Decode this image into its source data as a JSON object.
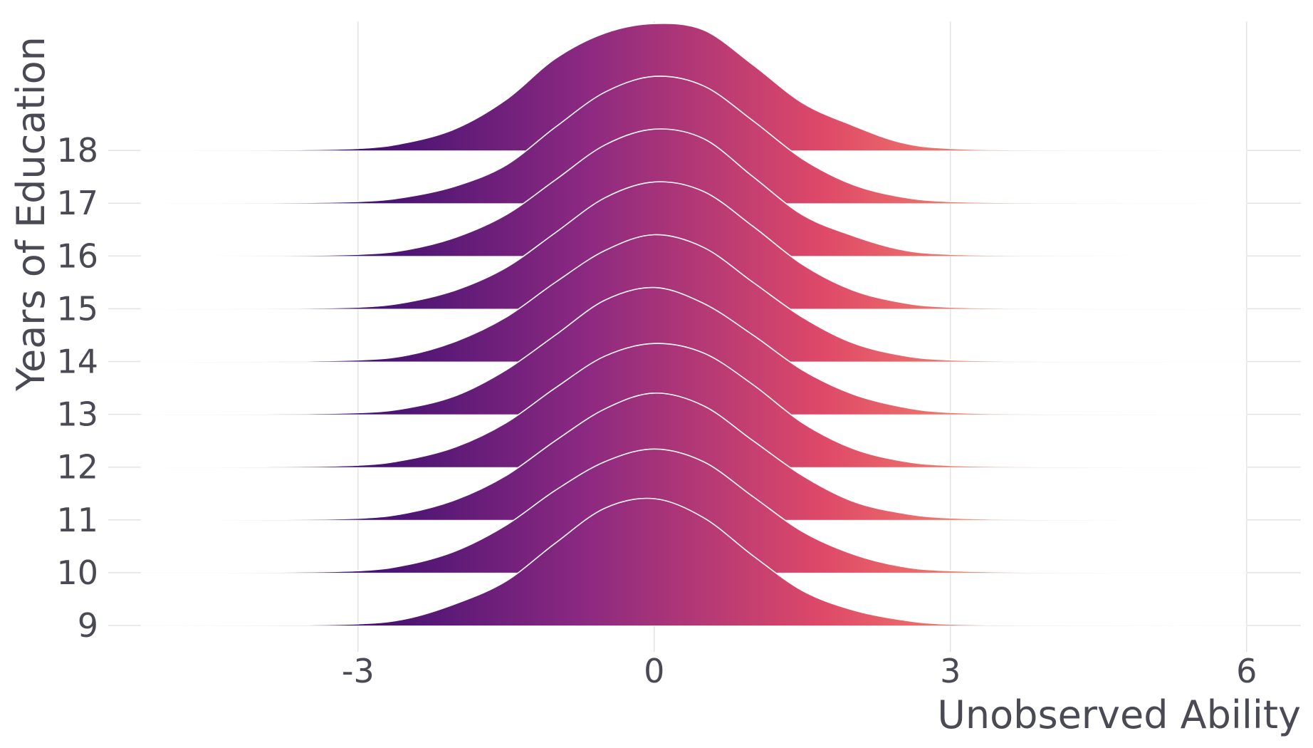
{
  "chart_data": {
    "type": "ridgeline",
    "x_label": "Unobserved Ability",
    "y_label": "Years of Education",
    "xlim": [
      -5.53,
      6.55
    ],
    "xticks": [
      -3,
      0,
      3,
      6
    ],
    "x": [
      -5.2,
      -4,
      -3,
      -2.5,
      -2,
      -1.5,
      -1,
      -0.5,
      0,
      0.5,
      1,
      1.5,
      2,
      2.5,
      3,
      4,
      6
    ],
    "categories": [
      "9",
      "10",
      "11",
      "12",
      "13",
      "14",
      "15",
      "16",
      "17",
      "18"
    ],
    "gradient": [
      "#000004",
      "#3b0f70",
      "#8c2981",
      "#de4968",
      "#fe9f6d",
      "#fcfdbf"
    ],
    "outline_color": "#ffffff",
    "grid": true,
    "series": [
      {
        "name": "9",
        "values": [
          0,
          0.001,
          0.005,
          0.022,
          0.07,
          0.14,
          0.26,
          0.37,
          0.4,
          0.34,
          0.22,
          0.11,
          0.05,
          0.018,
          0.004,
          0.001,
          0
        ]
      },
      {
        "name": "10",
        "values": [
          0,
          0.001,
          0.006,
          0.025,
          0.07,
          0.15,
          0.26,
          0.35,
          0.39,
          0.35,
          0.24,
          0.13,
          0.06,
          0.02,
          0.006,
          0.001,
          0
        ]
      },
      {
        "name": "11",
        "values": [
          0,
          0.001,
          0.005,
          0.022,
          0.065,
          0.14,
          0.25,
          0.35,
          0.4,
          0.36,
          0.25,
          0.14,
          0.06,
          0.022,
          0.006,
          0.001,
          0
        ]
      },
      {
        "name": "12",
        "values": [
          0,
          0.001,
          0.006,
          0.024,
          0.065,
          0.14,
          0.25,
          0.35,
          0.39,
          0.36,
          0.26,
          0.14,
          0.06,
          0.02,
          0.005,
          0.001,
          0
        ]
      },
      {
        "name": "13",
        "values": [
          0,
          0.001,
          0.005,
          0.02,
          0.06,
          0.14,
          0.25,
          0.36,
          0.4,
          0.35,
          0.25,
          0.14,
          0.065,
          0.024,
          0.006,
          0.001,
          0
        ]
      },
      {
        "name": "14",
        "values": [
          0,
          0.001,
          0.005,
          0.02,
          0.065,
          0.14,
          0.25,
          0.35,
          0.4,
          0.36,
          0.25,
          0.14,
          0.06,
          0.02,
          0.005,
          0.001,
          0
        ]
      },
      {
        "name": "15",
        "values": [
          0,
          0.001,
          0.005,
          0.021,
          0.06,
          0.13,
          0.24,
          0.35,
          0.4,
          0.37,
          0.26,
          0.14,
          0.06,
          0.02,
          0.005,
          0.001,
          0
        ]
      },
      {
        "name": "16",
        "values": [
          0,
          0.001,
          0.005,
          0.02,
          0.06,
          0.13,
          0.24,
          0.35,
          0.4,
          0.37,
          0.25,
          0.13,
          0.065,
          0.02,
          0.005,
          0.001,
          0
        ]
      },
      {
        "name": "17",
        "values": [
          0,
          0.001,
          0.005,
          0.02,
          0.055,
          0.12,
          0.24,
          0.35,
          0.4,
          0.37,
          0.26,
          0.14,
          0.06,
          0.02,
          0.005,
          0.001,
          0
        ]
      },
      {
        "name": "18",
        "values": [
          0,
          0.001,
          0.006,
          0.025,
          0.07,
          0.16,
          0.29,
          0.37,
          0.4,
          0.38,
          0.27,
          0.15,
          0.08,
          0.025,
          0.006,
          0.001,
          0
        ]
      }
    ]
  }
}
